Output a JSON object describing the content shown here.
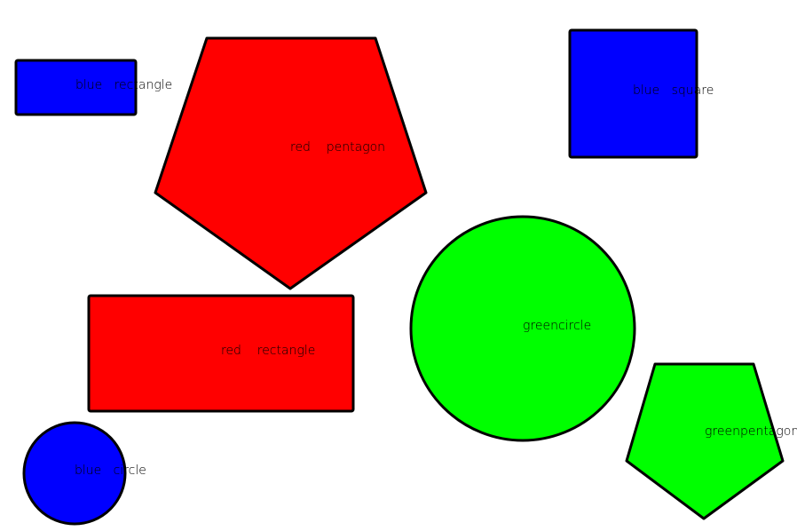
{
  "colors": {
    "blue": "#0000ff",
    "red": "#ff0000",
    "green": "#00ff00",
    "outline": "#000000",
    "background": "#ffffff"
  },
  "shapes": [
    {
      "kind": "rectangle",
      "color": "blue",
      "label": "blue   rectangle"
    },
    {
      "kind": "pentagon",
      "color": "red",
      "label": "red    pentagon"
    },
    {
      "kind": "square",
      "color": "blue",
      "label": "blue   square"
    },
    {
      "kind": "circle",
      "color": "green",
      "label": "greencircle"
    },
    {
      "kind": "rectangle",
      "color": "red",
      "label": "red    rectangle"
    },
    {
      "kind": "circle",
      "color": "blue",
      "label": "blue   circle"
    },
    {
      "kind": "pentagon",
      "color": "green",
      "label": "greenpentagon"
    }
  ]
}
